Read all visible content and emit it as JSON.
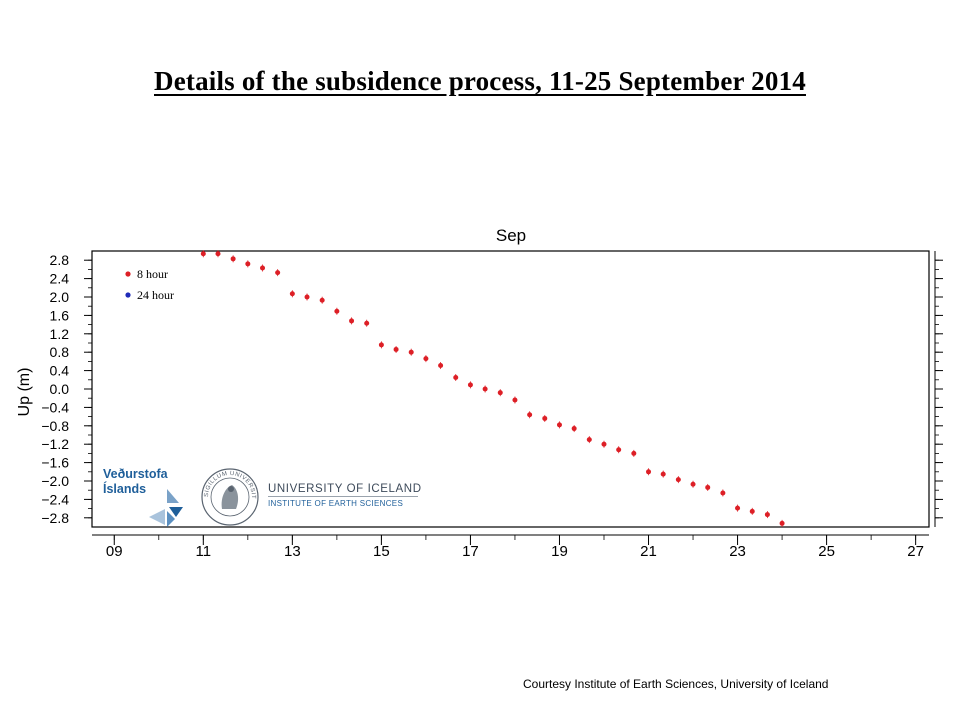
{
  "slide": {
    "title": "Details of  the subsidence process, 11-25 September 2014",
    "credit": "Courtesy Institute of Earth Sciences, University of Iceland"
  },
  "logos": {
    "vedurstofa_line1": "Veðurstofa",
    "vedurstofa_line2": "Íslands",
    "university_name": "UNIVERSITY OF ICELAND",
    "university_sub": "INSTITUTE OF EARTH SCIENCES",
    "seal_text": "SIGILLUM UNIVERSITATIS ISLANDIAE"
  },
  "chart_data": {
    "type": "scatter",
    "title": "Sep",
    "ylabel": "Up (m)",
    "xlabel": "",
    "xlim": [
      8.5,
      27.3
    ],
    "ylim": [
      -3.0,
      3.0
    ],
    "x_ticks": [
      9,
      11,
      13,
      15,
      17,
      19,
      21,
      23,
      25,
      27
    ],
    "x_tick_labels": [
      "09",
      "11",
      "13",
      "15",
      "17",
      "19",
      "21",
      "23",
      "25",
      "27"
    ],
    "y_ticks": [
      2.8,
      2.4,
      2.0,
      1.6,
      1.2,
      0.8,
      0.4,
      0.0,
      -0.4,
      -0.8,
      -1.2,
      -1.6,
      -2.0,
      -2.4,
      -2.8
    ],
    "y_tick_labels": [
      "2.8",
      "2.4",
      "2.0",
      "1.6",
      "1.2",
      "0.8",
      "0.4",
      "0.0",
      "−0.4",
      "−0.8",
      "−1.2",
      "−1.6",
      "−2.0",
      "−2.4",
      "−2.8"
    ],
    "grid": false,
    "legend_position": "top-left",
    "series": [
      {
        "name": "8 hour",
        "color": "#dd1f26",
        "x": [
          11.0,
          11.33,
          11.67,
          12.0,
          12.33,
          12.67,
          13.0,
          13.33,
          13.67,
          14.0,
          14.33,
          14.67,
          15.0,
          15.33,
          15.67,
          16.0,
          16.33,
          16.67,
          17.0,
          17.33,
          17.67,
          18.0,
          18.33,
          18.67,
          19.0,
          19.33,
          19.67,
          20.0,
          20.33,
          20.67,
          21.0,
          21.33,
          21.67,
          22.0,
          22.33,
          22.67,
          23.0,
          23.33,
          23.67,
          24.0
        ],
        "y": [
          2.94,
          2.94,
          2.83,
          2.72,
          2.63,
          2.53,
          2.07,
          2.0,
          1.93,
          1.69,
          1.48,
          1.43,
          0.96,
          0.86,
          0.8,
          0.66,
          0.51,
          0.25,
          0.09,
          0.0,
          -0.08,
          -0.24,
          -0.56,
          -0.64,
          -0.78,
          -0.86,
          -1.1,
          -1.2,
          -1.32,
          -1.4,
          -1.8,
          -1.85,
          -1.97,
          -2.07,
          -2.14,
          -2.26,
          -2.59,
          -2.66,
          -2.73,
          -2.92
        ]
      },
      {
        "name": "24 hour",
        "color": "#1f2bb8",
        "x": [],
        "y": []
      }
    ]
  }
}
